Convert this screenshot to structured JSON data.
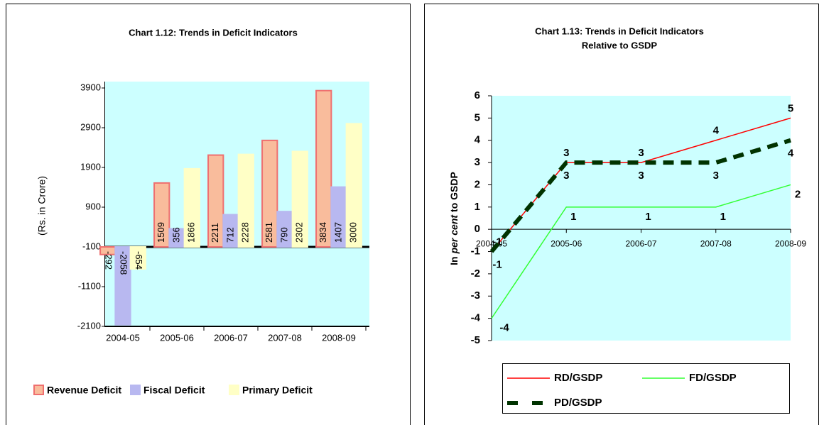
{
  "chart_data": [
    {
      "type": "bar",
      "title": "Chart 1.12: Trends in Deficit Indicators",
      "y_label": "(Rs. in Crore)",
      "categories": [
        "2004-05",
        "2005-06",
        "2006-07",
        "2007-08",
        "2008-09"
      ],
      "series": [
        {
          "name": "Revenue Deficit",
          "color": "#f9bc9c",
          "border": "#ef6f6f",
          "values": [
            -292,
            1509,
            2211,
            2581,
            3834
          ]
        },
        {
          "name": "Fiscal Deficit",
          "color": "#b8b8f0",
          "border": "#b8b8f0",
          "values": [
            -2058,
            356,
            712,
            790,
            1407
          ]
        },
        {
          "name": "Primary Deficit",
          "color": "#ffffc6",
          "border": "#ffffc6",
          "values": [
            -654,
            1866,
            2228,
            2302,
            3000
          ]
        }
      ],
      "ylim": [
        -2100,
        3900
      ],
      "yticks": [
        3900,
        2900,
        1900,
        900,
        -100,
        -1100,
        -2100
      ],
      "grid": false,
      "legend": "bottom"
    },
    {
      "type": "line",
      "title": [
        "Chart 1.13: Trends in Deficit Indicators",
        "Relative to GSDP"
      ],
      "y_label": [
        "In",
        "per cent",
        "to GSDP"
      ],
      "categories": [
        "2004-05",
        "2005-06",
        "2006-07",
        "2007-08",
        "2008-09"
      ],
      "series": [
        {
          "name": "RD/GSDP",
          "color": "#ff0000",
          "values": [
            -1,
            3,
            3,
            4,
            5
          ]
        },
        {
          "name": "FD/GSDP",
          "color": "#33ff33",
          "values": [
            -4,
            1,
            1,
            1,
            2
          ]
        },
        {
          "name": "PD/GSDP",
          "color": "#003300",
          "dashed": true,
          "values": [
            -1,
            3,
            3,
            3,
            4
          ]
        }
      ],
      "ylim": [
        -5,
        6
      ],
      "yticks": [
        6,
        5,
        4,
        3,
        2,
        1,
        0,
        -1,
        -2,
        -3,
        -4,
        -5
      ],
      "grid": false,
      "legend": "bottom"
    }
  ]
}
